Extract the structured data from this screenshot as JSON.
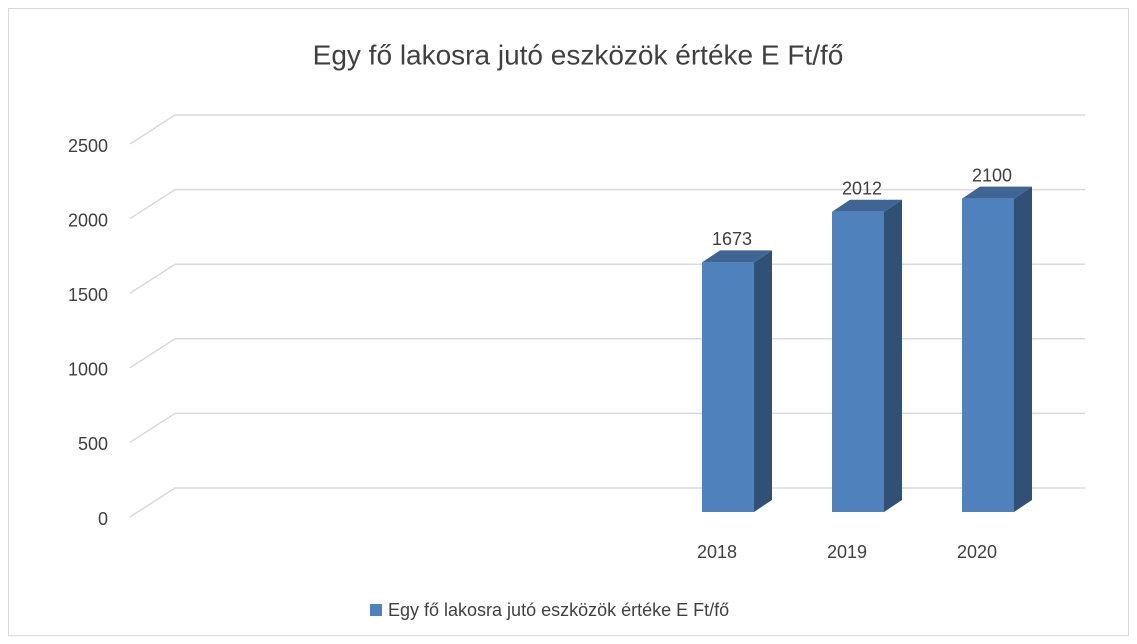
{
  "chart_data": {
    "type": "bar3d",
    "title": "Egy fő lakosra jutó eszközök értéke E Ft/fő",
    "categories": [
      null,
      null,
      null,
      null,
      "2018",
      "2019",
      "2020"
    ],
    "series": [
      {
        "name": "Egy fő lakosra jutó eszközök értéke E Ft/fő",
        "color": "#4f81bd",
        "values": [
          null,
          null,
          null,
          null,
          1673,
          2012,
          2100
        ]
      }
    ],
    "ylim": [
      0,
      2500
    ],
    "yticks": [
      0,
      500,
      1000,
      1500,
      2000,
      2500
    ],
    "grid": true,
    "data_labels": true,
    "legend": "bottom"
  }
}
